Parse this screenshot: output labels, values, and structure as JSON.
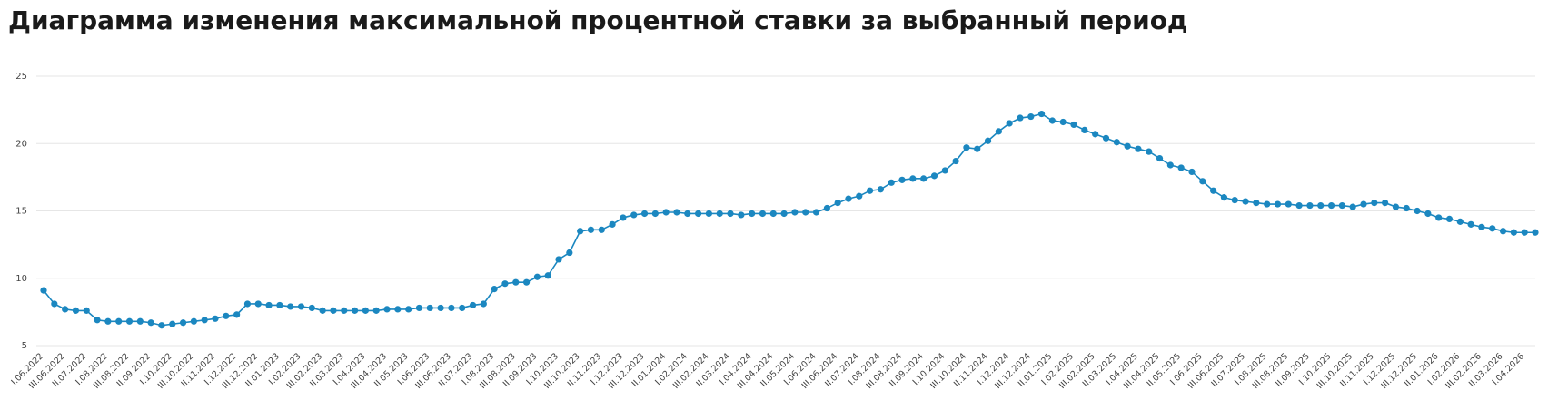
{
  "chart_data": {
    "type": "line",
    "title": "Диаграмма изменения максимальной процентной ставки за выбранный период",
    "categories": [
      "I.06.2022",
      null,
      "III.06.2022",
      null,
      "II.07.2022",
      null,
      "I.08.2022",
      null,
      "III.08.2022",
      null,
      "II.09.2022",
      null,
      "I.10.2022",
      null,
      "III.10.2022",
      null,
      "II.11.2022",
      null,
      "I.12.2022",
      null,
      "III.12.2022",
      null,
      "II.01.2023",
      null,
      "I.02.2023",
      null,
      "III.02.2023",
      null,
      "II.03.2023",
      null,
      "I.04.2023",
      null,
      "III.04.2023",
      null,
      "II.05.2023",
      null,
      "I.06.2023",
      null,
      "III.06.2023",
      null,
      "II.07.2023",
      null,
      "I.08.2023",
      null,
      "III.08.2023",
      null,
      "II.09.2023",
      null,
      "I.10.2023",
      null,
      "III.10.2023",
      null,
      "II.11.2023",
      null,
      "I.12.2023",
      null,
      "III.12.2023",
      null,
      "II.01.2024",
      null,
      "I.02.2024",
      null,
      "III.02.2024",
      null,
      "II.03.2024",
      null,
      "I.04.2024",
      null,
      "III.04.2024",
      null,
      "II.05.2024",
      null,
      "I.06.2024",
      null,
      "III.06.2024",
      null,
      "II.07.2024",
      null,
      "I.08.2024",
      null,
      "III.08.2024",
      null,
      "II.09.2024",
      null,
      "I.10.2024",
      null,
      "III.10.2024",
      null,
      "II.11.2024",
      null,
      "I.12.2024",
      null,
      "III.12.2024",
      null,
      "II.01.2025",
      null,
      "I.02.2025",
      null,
      "III.02.2025",
      null,
      "II.03.2025",
      null,
      "I.04.2025",
      null,
      "III.04.2025",
      null,
      "II.05.2025",
      null,
      "I.06.2025",
      null,
      "III.06.2025",
      null,
      "II.07.2025",
      null,
      "I.08.2025",
      null,
      "III.08.2025",
      null,
      "II.09.2025",
      null,
      "I.10.2025",
      null,
      "III.10.2025",
      null,
      "II.11.2025",
      null,
      "I.12.2025",
      null,
      "III.12.2025",
      null,
      "II.01.2026",
      null,
      "I.02.2026",
      null,
      "III.02.2026",
      null,
      "II.03.2026",
      null,
      "I.04.2026",
      null
    ],
    "values": [
      9.1,
      8.1,
      7.7,
      7.6,
      7.6,
      6.9,
      6.8,
      6.8,
      6.8,
      6.8,
      6.7,
      6.5,
      6.6,
      6.7,
      6.8,
      6.9,
      7.0,
      7.2,
      7.3,
      8.1,
      8.1,
      8.0,
      8.0,
      7.9,
      7.9,
      7.8,
      7.6,
      7.6,
      7.6,
      7.6,
      7.6,
      7.6,
      7.7,
      7.7,
      7.7,
      7.8,
      7.8,
      7.8,
      7.8,
      7.8,
      8.0,
      8.1,
      9.2,
      9.6,
      9.7,
      9.7,
      10.1,
      10.2,
      11.4,
      11.9,
      13.5,
      13.6,
      13.6,
      14.0,
      14.5,
      14.7,
      14.8,
      14.8,
      14.9,
      14.9,
      14.8,
      14.8,
      14.8,
      14.8,
      14.8,
      14.7,
      14.8,
      14.8,
      14.8,
      14.8,
      14.9,
      14.9,
      14.9,
      15.2,
      15.6,
      15.9,
      16.1,
      16.5,
      16.6,
      17.1,
      17.3,
      17.4,
      17.4,
      17.6,
      18.0,
      18.7,
      19.7,
      19.6,
      20.2,
      20.9,
      21.5,
      21.9,
      22.0,
      22.2,
      21.7,
      21.6,
      21.4,
      21.0,
      20.7,
      20.4,
      20.1,
      19.8,
      19.6,
      19.4,
      18.9,
      18.4,
      18.2,
      17.9,
      17.2,
      16.5,
      16.0,
      15.8,
      15.7,
      15.6,
      15.5,
      15.5,
      15.5,
      15.4,
      15.4,
      15.4,
      15.4,
      15.4,
      15.3,
      15.5,
      15.6,
      15.6,
      15.3,
      15.2,
      15.0,
      14.8,
      14.5,
      14.4,
      14.2,
      14.0,
      13.8,
      13.7,
      13.5,
      13.4,
      13.4,
      13.4
    ],
    "color": "#1b87c0",
    "ylim": [
      5,
      25
    ],
    "yticks": [
      5,
      10,
      15,
      20,
      25
    ],
    "grid": true
  }
}
